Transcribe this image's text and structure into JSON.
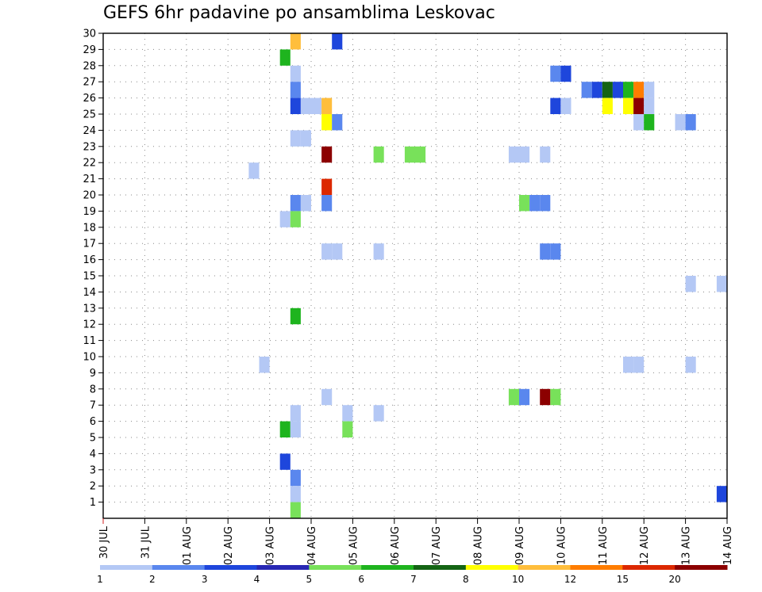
{
  "chart_data": {
    "type": "heatmap",
    "title": "GEFS 6hr padavine po ansamblima Leskovac",
    "xlabel": "",
    "ylabel": "",
    "x_tick_labels": [
      "30 JUL",
      "31 JUL",
      "01 AUG",
      "02 AUG",
      "03 AUG",
      "04 AUG",
      "05 AUG",
      "06 AUG",
      "07 AUG",
      "08 AUG",
      "09 AUG",
      "10 AUG",
      "11 AUG",
      "12 AUG",
      "13 AUG",
      "14 AUG"
    ],
    "y_tick_labels": [
      "1",
      "2",
      "3",
      "4",
      "5",
      "6",
      "7",
      "8",
      "9",
      "10",
      "11",
      "12",
      "13",
      "14",
      "15",
      "16",
      "17",
      "18",
      "19",
      "20",
      "21",
      "22",
      "23",
      "24",
      "25",
      "26",
      "27",
      "28",
      "29",
      "30"
    ],
    "xlim": [
      0,
      60
    ],
    "ylim": [
      0,
      30
    ],
    "grid": true,
    "colorbar": {
      "labels": [
        "1",
        "2",
        "3",
        "4",
        "5",
        "6",
        "7",
        "8",
        "10",
        "12",
        "15",
        "20"
      ],
      "colors": [
        "#b4c8f5",
        "#5a87ee",
        "#1e46dc",
        "#2828b4",
        "#78e15a",
        "#1eb41e",
        "#146414",
        "#ffff00",
        "#ffbe3c",
        "#ff7d00",
        "#dc2800",
        "#8c0000"
      ]
    },
    "cells": [
      {
        "t": 19,
        "m": 30,
        "v": 10
      },
      {
        "t": 23,
        "m": 30,
        "v": 3
      },
      {
        "t": 18,
        "m": 29,
        "v": 6
      },
      {
        "t": 19,
        "m": 28,
        "v": 1
      },
      {
        "t": 44,
        "m": 28,
        "v": 2
      },
      {
        "t": 45,
        "m": 28,
        "v": 3
      },
      {
        "t": 19,
        "m": 27,
        "v": 2
      },
      {
        "t": 47,
        "m": 27,
        "v": 2
      },
      {
        "t": 48,
        "m": 27,
        "v": 3
      },
      {
        "t": 49,
        "m": 27,
        "v": 7
      },
      {
        "t": 50,
        "m": 27,
        "v": 3
      },
      {
        "t": 51,
        "m": 27,
        "v": 6
      },
      {
        "t": 52,
        "m": 27,
        "v": 12
      },
      {
        "t": 53,
        "m": 27,
        "v": 1
      },
      {
        "t": 19,
        "m": 26,
        "v": 3
      },
      {
        "t": 20,
        "m": 26,
        "v": 1
      },
      {
        "t": 21,
        "m": 26,
        "v": 1
      },
      {
        "t": 22,
        "m": 26,
        "v": 10
      },
      {
        "t": 44,
        "m": 26,
        "v": 3
      },
      {
        "t": 45,
        "m": 26,
        "v": 1
      },
      {
        "t": 49,
        "m": 26,
        "v": 8
      },
      {
        "t": 51,
        "m": 26,
        "v": 8
      },
      {
        "t": 52,
        "m": 26,
        "v": 20
      },
      {
        "t": 53,
        "m": 26,
        "v": 1
      },
      {
        "t": 22,
        "m": 25,
        "v": 8
      },
      {
        "t": 23,
        "m": 25,
        "v": 2
      },
      {
        "t": 52,
        "m": 25,
        "v": 1
      },
      {
        "t": 53,
        "m": 25,
        "v": 6
      },
      {
        "t": 56,
        "m": 25,
        "v": 1
      },
      {
        "t": 57,
        "m": 25,
        "v": 2
      },
      {
        "t": 19,
        "m": 24,
        "v": 1
      },
      {
        "t": 20,
        "m": 24,
        "v": 1
      },
      {
        "t": 22,
        "m": 23,
        "v": 20
      },
      {
        "t": 27,
        "m": 23,
        "v": 5
      },
      {
        "t": 30,
        "m": 23,
        "v": 5
      },
      {
        "t": 31,
        "m": 23,
        "v": 5
      },
      {
        "t": 40,
        "m": 23,
        "v": 1
      },
      {
        "t": 41,
        "m": 23,
        "v": 1
      },
      {
        "t": 43,
        "m": 23,
        "v": 1
      },
      {
        "t": 15,
        "m": 22,
        "v": 1
      },
      {
        "t": 22,
        "m": 21,
        "v": 15
      },
      {
        "t": 19,
        "m": 20,
        "v": 2
      },
      {
        "t": 20,
        "m": 20,
        "v": 1
      },
      {
        "t": 22,
        "m": 20,
        "v": 2
      },
      {
        "t": 41,
        "m": 20,
        "v": 5
      },
      {
        "t": 42,
        "m": 20,
        "v": 2
      },
      {
        "t": 43,
        "m": 20,
        "v": 2
      },
      {
        "t": 18,
        "m": 19,
        "v": 1
      },
      {
        "t": 19,
        "m": 19,
        "v": 5
      },
      {
        "t": 22,
        "m": 17,
        "v": 1
      },
      {
        "t": 23,
        "m": 17,
        "v": 1
      },
      {
        "t": 27,
        "m": 17,
        "v": 1
      },
      {
        "t": 43,
        "m": 17,
        "v": 2
      },
      {
        "t": 44,
        "m": 17,
        "v": 2
      },
      {
        "t": 57,
        "m": 15,
        "v": 1
      },
      {
        "t": 60,
        "m": 15,
        "v": 1
      },
      {
        "t": 19,
        "m": 13,
        "v": 6
      },
      {
        "t": 16,
        "m": 10,
        "v": 1
      },
      {
        "t": 51,
        "m": 10,
        "v": 1
      },
      {
        "t": 52,
        "m": 10,
        "v": 1
      },
      {
        "t": 57,
        "m": 10,
        "v": 1
      },
      {
        "t": 22,
        "m": 8,
        "v": 1
      },
      {
        "t": 40,
        "m": 8,
        "v": 5
      },
      {
        "t": 41,
        "m": 8,
        "v": 2
      },
      {
        "t": 43,
        "m": 8,
        "v": 20
      },
      {
        "t": 44,
        "m": 8,
        "v": 5
      },
      {
        "t": 19,
        "m": 7,
        "v": 1
      },
      {
        "t": 24,
        "m": 7,
        "v": 1
      },
      {
        "t": 27,
        "m": 7,
        "v": 1
      },
      {
        "t": 18,
        "m": 6,
        "v": 6
      },
      {
        "t": 19,
        "m": 6,
        "v": 1
      },
      {
        "t": 24,
        "m": 6,
        "v": 5
      },
      {
        "t": 18,
        "m": 4,
        "v": 3
      },
      {
        "t": 19,
        "m": 3,
        "v": 2
      },
      {
        "t": 19,
        "m": 2,
        "v": 1
      },
      {
        "t": 60,
        "m": 2,
        "v": 3
      },
      {
        "t": 19,
        "m": 1,
        "v": 5
      }
    ]
  }
}
